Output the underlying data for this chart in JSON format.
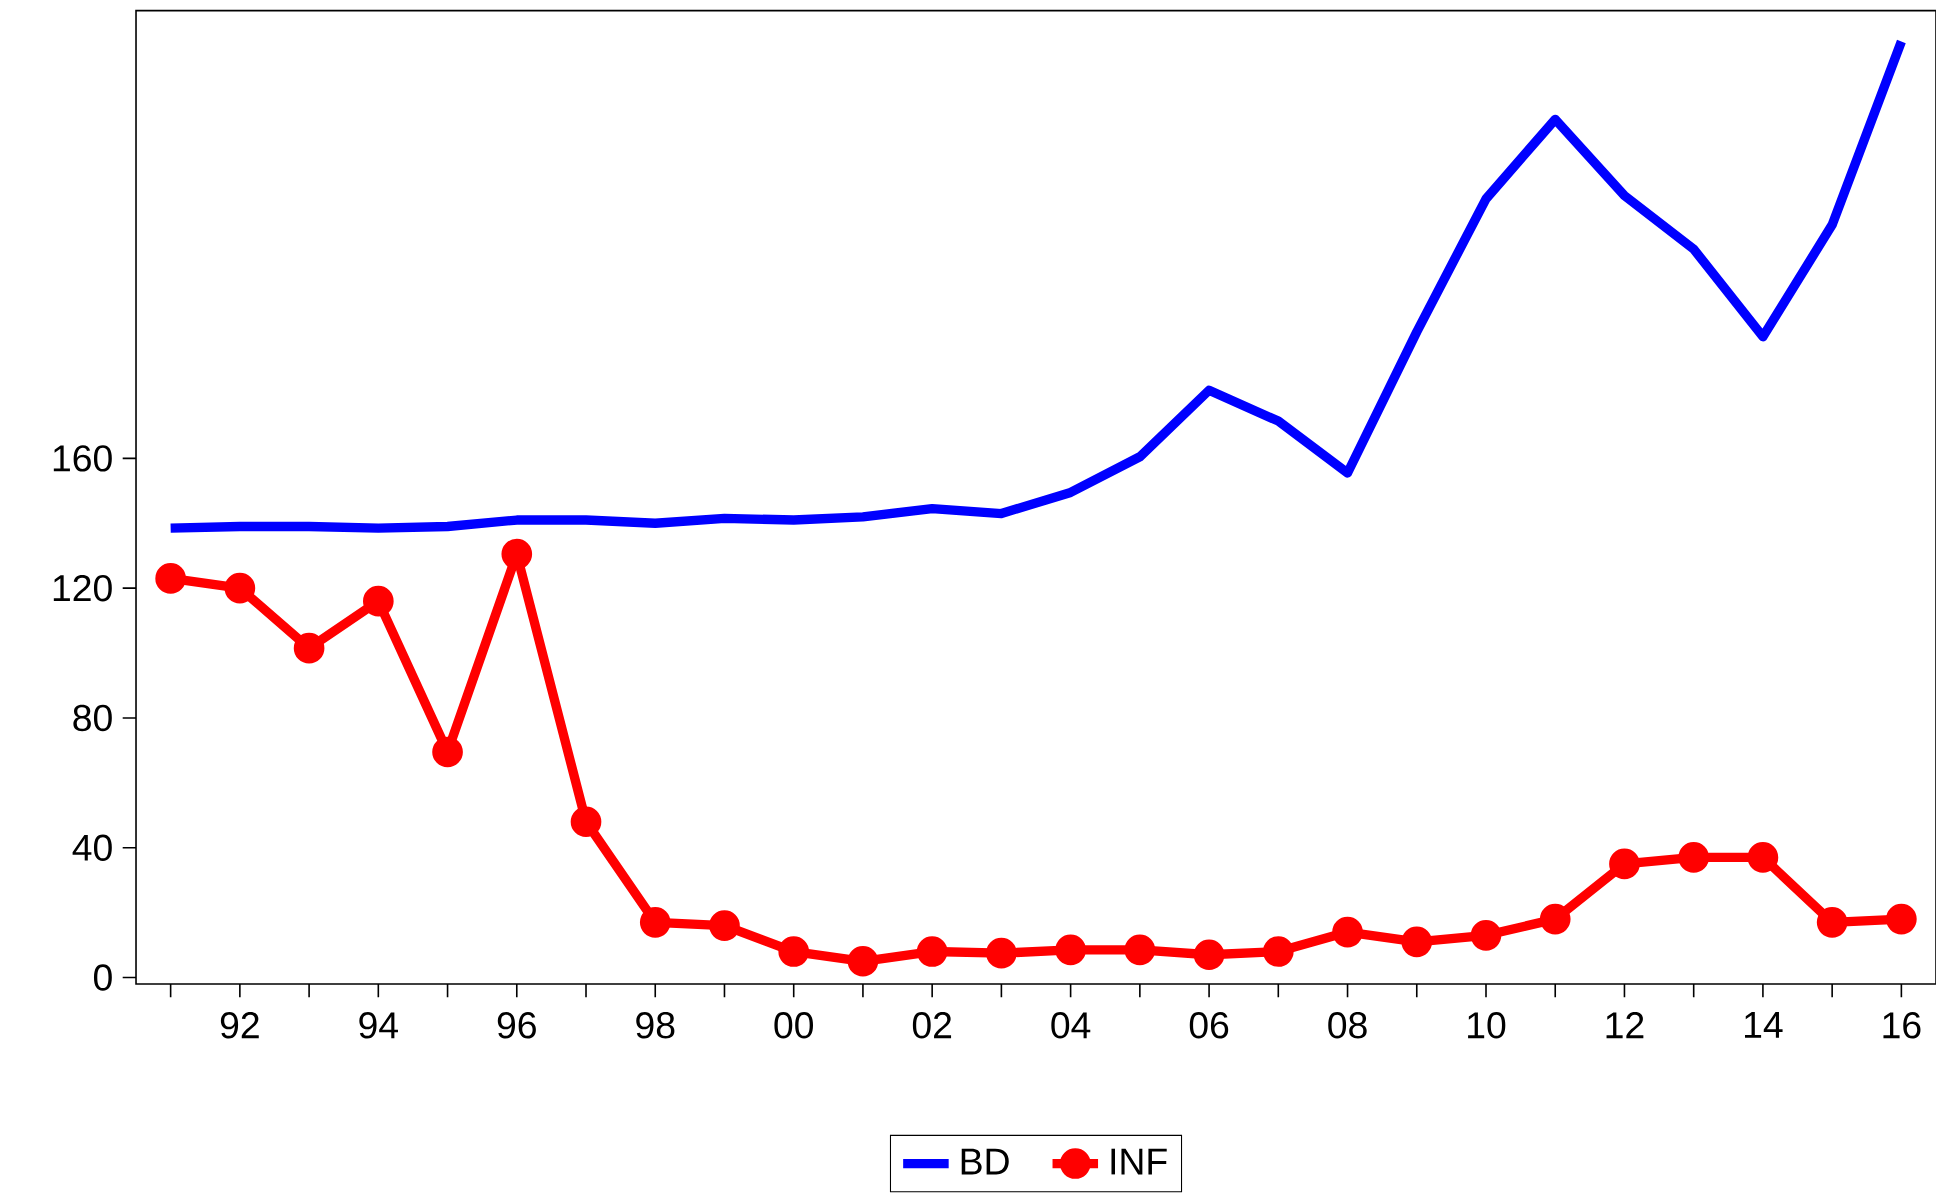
{
  "chart_data": {
    "type": "line",
    "x": [
      1991,
      1992,
      1993,
      1994,
      1995,
      1996,
      1997,
      1998,
      1999,
      2000,
      2001,
      2002,
      2003,
      2004,
      2005,
      2006,
      2007,
      2008,
      2009,
      2010,
      2011,
      2012,
      2013,
      2014,
      2015,
      2016
    ],
    "series": [
      {
        "name": "BD",
        "color": "#0000ff",
        "marker": "none",
        "values": [
          138.5,
          139,
          139,
          138.5,
          139,
          141,
          141,
          140,
          141.5,
          141,
          142,
          144.5,
          143,
          149.5,
          160.5,
          181,
          171.5,
          155.5,
          199,
          240,
          264.5,
          241,
          224.5,
          197.5,
          232,
          288.5
        ]
      },
      {
        "name": "INF",
        "color": "#ff0000",
        "marker": "circle",
        "values": [
          123,
          120,
          101.5,
          116,
          69.5,
          130.5,
          48,
          17,
          16,
          8,
          5,
          8,
          7.5,
          8.5,
          8.5,
          7,
          8,
          14,
          11,
          13,
          18,
          35,
          37,
          37,
          17,
          18
        ]
      }
    ],
    "xlim": [
      1990.5,
      2016.5
    ],
    "ylim": [
      -2,
      298
    ],
    "xticks": [
      {
        "value": 1991,
        "label": null
      },
      {
        "value": 1992,
        "label": "92"
      },
      {
        "value": 1993,
        "label": null
      },
      {
        "value": 1994,
        "label": "94"
      },
      {
        "value": 1995,
        "label": null
      },
      {
        "value": 1996,
        "label": "96"
      },
      {
        "value": 1997,
        "label": null
      },
      {
        "value": 1998,
        "label": "98"
      },
      {
        "value": 1999,
        "label": null
      },
      {
        "value": 2000,
        "label": "00"
      },
      {
        "value": 2001,
        "label": null
      },
      {
        "value": 2002,
        "label": "02"
      },
      {
        "value": 2003,
        "label": null
      },
      {
        "value": 2004,
        "label": "04"
      },
      {
        "value": 2005,
        "label": null
      },
      {
        "value": 2006,
        "label": "06"
      },
      {
        "value": 2007,
        "label": null
      },
      {
        "value": 2008,
        "label": "08"
      },
      {
        "value": 2009,
        "label": null
      },
      {
        "value": 2010,
        "label": "10"
      },
      {
        "value": 2011,
        "label": null
      },
      {
        "value": 2012,
        "label": "12"
      },
      {
        "value": 2013,
        "label": null
      },
      {
        "value": 2014,
        "label": "14"
      },
      {
        "value": 2015,
        "label": null
      },
      {
        "value": 2016,
        "label": "16"
      }
    ],
    "yticks": [
      0,
      40,
      80,
      120,
      160
    ],
    "grid": false,
    "legend": "bottom",
    "line_style": "solid"
  }
}
